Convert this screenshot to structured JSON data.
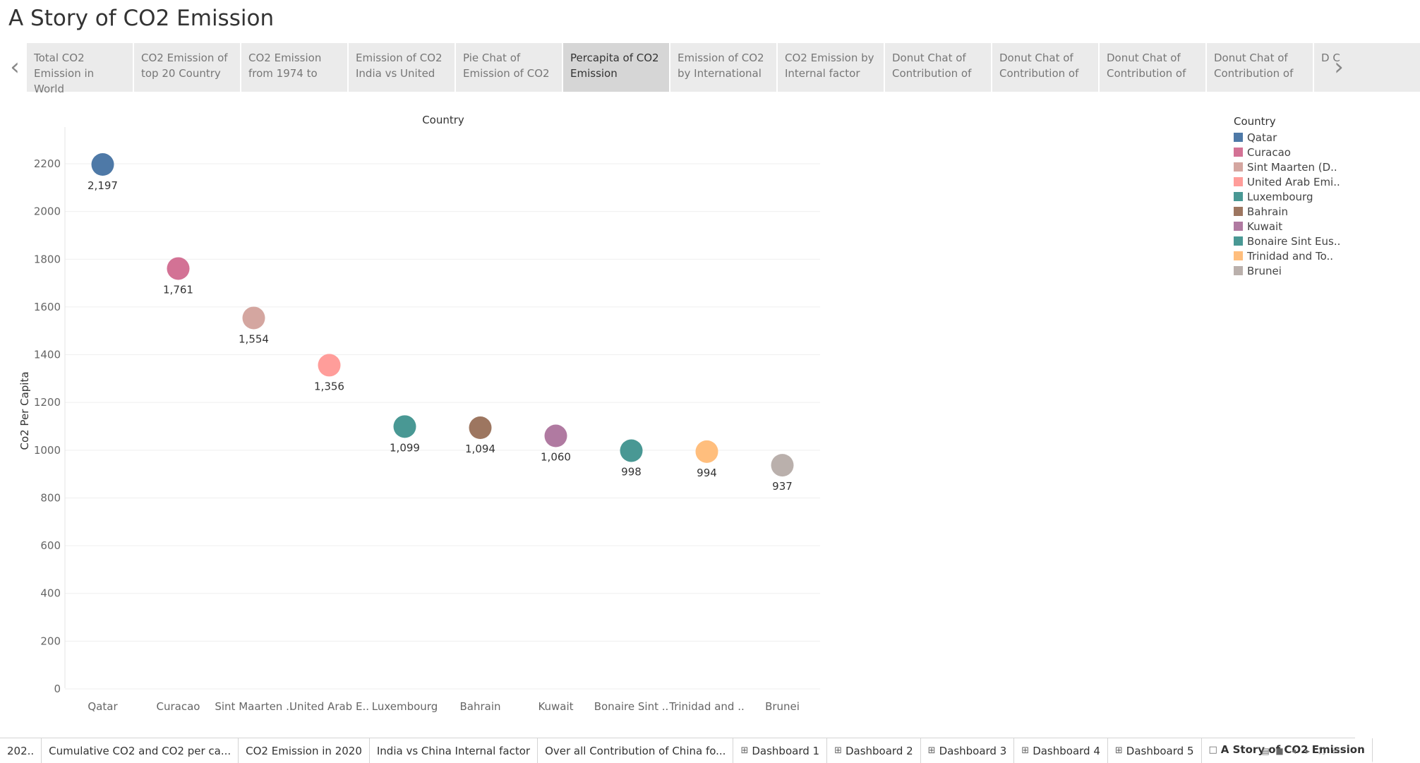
{
  "story": {
    "title": "A Story of CO2 Emission",
    "points": [
      "Total CO2 Emission in World",
      "CO2 Emission of top 20 Country",
      "CO2 Emission from 1974 to",
      "Emission of CO2 India vs United",
      "Pie Chat of Emission of CO2",
      "Percapita of CO2 Emission",
      "Emission of CO2 by International",
      "CO2 Emission by Internal factor",
      "Donut Chat of Contribution of",
      "Donut Chat of Contribution of",
      "Donut Chat of Contribution of",
      "Donut Chat of Contribution of",
      "D C"
    ],
    "active_index": 5
  },
  "nav": {
    "prev_icon": "chevron-left-icon",
    "next_icon": "chevron-right-icon"
  },
  "chart_data": {
    "type": "scatter",
    "title": "Country",
    "ylabel": "Co2 Per Capita",
    "xlabel": "",
    "ylim": [
      0,
      2300
    ],
    "yticks": [
      "0",
      "200",
      "400",
      "600",
      "800",
      "1000",
      "1200",
      "1400",
      "1600",
      "1800",
      "2000",
      "2200"
    ],
    "ytick_values": [
      0,
      200,
      400,
      600,
      800,
      1000,
      1200,
      1400,
      1600,
      1800,
      2000,
      2200
    ],
    "grid": true,
    "categories": [
      "Qatar",
      "Curacao",
      "Sint Maarten ..",
      "United Arab E..",
      "Luxembourg",
      "Bahrain",
      "Kuwait",
      "Bonaire Sint ..",
      "Trinidad and ..",
      "Brunei"
    ],
    "values": [
      2197,
      1761,
      1554,
      1356,
      1099,
      1094,
      1060,
      998,
      994,
      937
    ],
    "value_labels": [
      "2,197",
      "1,761",
      "1,554",
      "1,356",
      "1,099",
      "1,094",
      "1,060",
      "998",
      "994",
      "937"
    ],
    "colors": [
      "#4e79a7",
      "#d37295",
      "#d4a6a0",
      "#ff9d9a",
      "#499894",
      "#9d7660",
      "#b07aa1",
      "#499894",
      "#ffbe7d",
      "#bab0ac"
    ],
    "legend": {
      "title": "Country",
      "position": "right",
      "entries": [
        "Qatar",
        "Curacao",
        "Sint Maarten (D..",
        "United Arab Emi..",
        "Luxembourg",
        "Bahrain",
        "Kuwait",
        "Bonaire Sint Eus..",
        "Trinidad and To..",
        "Brunei"
      ]
    }
  },
  "sheet_tabs": [
    {
      "label": "202..",
      "icon": ""
    },
    {
      "label": "Cumulative CO2 and CO2 per ca...",
      "icon": ""
    },
    {
      "label": "CO2 Emission in 2020",
      "icon": ""
    },
    {
      "label": "India vs China Internal factor",
      "icon": ""
    },
    {
      "label": "Over all Contribution of China fo...",
      "icon": ""
    },
    {
      "label": "Dashboard 1",
      "icon": "dashboard-icon"
    },
    {
      "label": "Dashboard 2",
      "icon": "dashboard-icon"
    },
    {
      "label": "Dashboard 3",
      "icon": "dashboard-icon"
    },
    {
      "label": "Dashboard 4",
      "icon": "dashboard-icon"
    },
    {
      "label": "Dashboard 5",
      "icon": "dashboard-icon"
    },
    {
      "label": "A Story of CO2 Emission",
      "icon": "story-icon",
      "active": true
    }
  ],
  "tab_controls": [
    "show-filmstrip-icon",
    "show-sheet-icon",
    "scroll-left-icon",
    "scroll-right-icon",
    "fullscreen-icon",
    "presentation-icon"
  ]
}
